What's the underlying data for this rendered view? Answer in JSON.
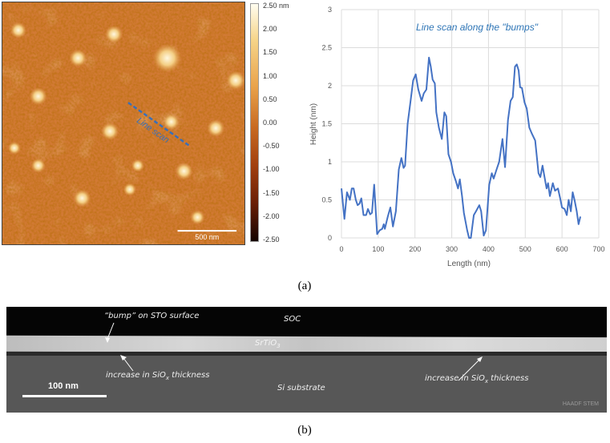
{
  "panel_a": {
    "afm": {
      "line_scan_label": "Line scan",
      "scale_bar_label": "500 nm",
      "colorbar_labels": [
        "2.50 nm",
        "2.00",
        "1.50",
        "1.00",
        "0.50",
        "0.00",
        "-0.50",
        "-1.00",
        "-1.50",
        "-2.00",
        "-2.50"
      ]
    },
    "caption": "(a)"
  },
  "chart_data": {
    "type": "line",
    "title": "Line scan along the \"bumps\"",
    "xlabel": "Length (nm)",
    "ylabel": "Height (nm)",
    "xlim": [
      0,
      700
    ],
    "ylim": [
      0,
      3
    ],
    "xticks": [
      "0",
      "100",
      "200",
      "300",
      "400",
      "500",
      "600",
      "700"
    ],
    "yticks": [
      "0",
      "0.5",
      "1",
      "1.5",
      "2",
      "2.5",
      "3"
    ],
    "grid": true,
    "color": "#4472c4",
    "x": [
      0,
      8,
      15,
      23,
      28,
      33,
      39,
      44,
      49,
      54,
      60,
      67,
      72,
      78,
      83,
      89,
      97,
      104,
      111,
      115,
      118,
      126,
      133,
      140,
      148,
      156,
      163,
      169,
      173,
      180,
      188,
      195,
      202,
      209,
      218,
      224,
      231,
      238,
      243,
      248,
      254,
      258,
      265,
      273,
      280,
      285,
      291,
      298,
      304,
      311,
      317,
      322,
      328,
      333,
      342,
      347,
      352,
      360,
      366,
      375,
      380,
      387,
      393,
      402,
      409,
      414,
      422,
      429,
      438,
      445,
      453,
      460,
      466,
      472,
      477,
      482,
      486,
      491,
      498,
      504,
      511,
      518,
      527,
      536,
      541,
      547,
      555,
      558,
      562,
      567,
      575,
      581,
      589,
      595,
      600,
      607,
      613,
      618,
      624,
      629,
      634,
      640,
      645,
      650
    ],
    "y": [
      0.65,
      0.25,
      0.6,
      0.5,
      0.65,
      0.65,
      0.5,
      0.43,
      0.45,
      0.52,
      0.3,
      0.3,
      0.38,
      0.31,
      0.33,
      0.7,
      0.05,
      0.1,
      0.12,
      0.18,
      0.12,
      0.28,
      0.4,
      0.15,
      0.35,
      0.9,
      1.05,
      0.92,
      0.95,
      1.5,
      1.8,
      2.07,
      2.15,
      1.95,
      1.8,
      1.9,
      1.95,
      2.37,
      2.25,
      2.08,
      2.03,
      1.65,
      1.45,
      1.3,
      1.65,
      1.6,
      1.1,
      1.0,
      0.85,
      0.75,
      0.65,
      0.77,
      0.55,
      0.33,
      0.1,
      -0.05,
      0,
      0.3,
      0.35,
      0.43,
      0.35,
      0.03,
      0.1,
      0.7,
      0.85,
      0.78,
      0.9,
      1.0,
      1.3,
      0.93,
      1.55,
      1.8,
      1.85,
      2.25,
      2.28,
      2.2,
      1.98,
      1.97,
      1.78,
      1.7,
      1.45,
      1.37,
      1.28,
      0.85,
      0.8,
      0.95,
      0.73,
      0.65,
      0.72,
      0.55,
      0.72,
      0.62,
      0.65,
      0.52,
      0.4,
      0.38,
      0.3,
      0.5,
      0.35,
      0.6,
      0.5,
      0.35,
      0.18,
      0.28
    ]
  },
  "panel_b": {
    "labels": {
      "bump": "“bump” on STO surface",
      "soc": "SOC",
      "sto": "SrTiO",
      "sto_sub": "3",
      "increase_prefix": "increase in SiO",
      "increase_sub": "x",
      "increase_suffix": " thickness",
      "substrate": "Si substrate",
      "scale": "100 nm",
      "mode": "HAADF STEM"
    },
    "caption": "(b)"
  }
}
